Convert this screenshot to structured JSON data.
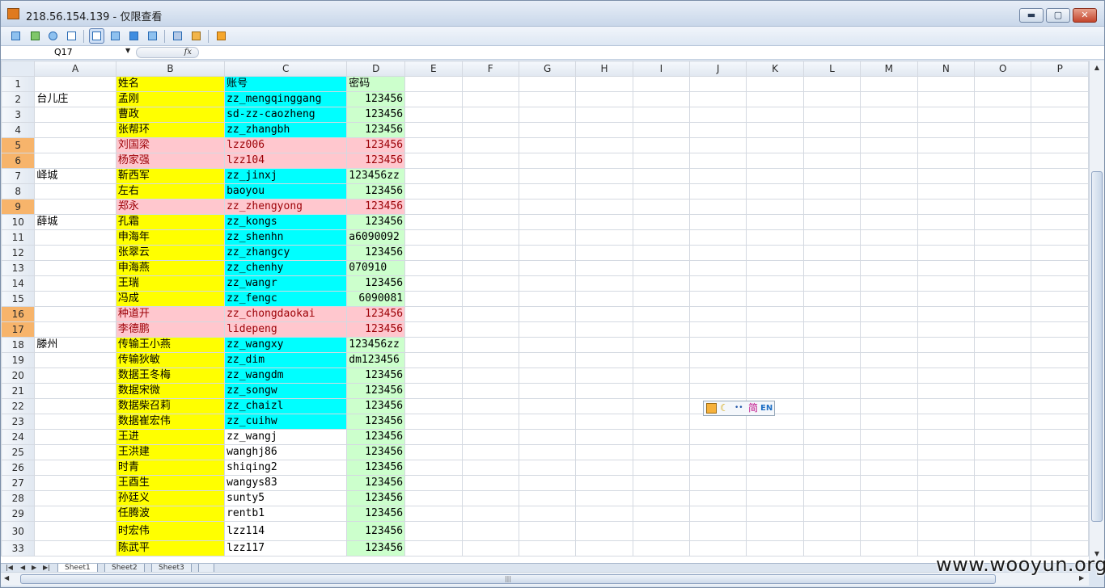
{
  "window": {
    "title": "218.56.154.139 - 仅限查看",
    "min_label": "▬",
    "max_label": "▢",
    "close_label": "✕"
  },
  "toolbar": {
    "icons": [
      "screen-icon",
      "transfer-icon",
      "phone-icon",
      "chat-icon",
      "window-mode-icon",
      "fullscreen-icon",
      "scale-icon",
      "fit-icon",
      "refresh-icon",
      "tools-icon",
      "disconnect-icon"
    ]
  },
  "formula_bar": {
    "cell_ref": "Q17",
    "fx_label": "fx",
    "formula": ""
  },
  "columns": [
    "A",
    "B",
    "C",
    "D",
    "E",
    "F",
    "G",
    "H",
    "I",
    "J",
    "K",
    "L",
    "M",
    "N",
    "O",
    "P"
  ],
  "rows": [
    {
      "n": "1",
      "a": "",
      "b": "姓名",
      "c": "账号",
      "d": "密码",
      "style": "header"
    },
    {
      "n": "2",
      "a": "台儿庄",
      "b": "孟刚",
      "c": "zz_mengqinggang",
      "d": "123456",
      "style": "normal"
    },
    {
      "n": "3",
      "a": "",
      "b": "曹政",
      "c": "sd-zz-caozheng",
      "d": "123456",
      "style": "normal"
    },
    {
      "n": "4",
      "a": "",
      "b": "张帮环",
      "c": "zz_zhangbh",
      "d": "123456",
      "style": "normal"
    },
    {
      "n": "5",
      "a": "",
      "b": "刘国梁",
      "c": "lzz006",
      "d": "123456",
      "style": "pink"
    },
    {
      "n": "6",
      "a": "",
      "b": "杨家强",
      "c": "lzz104",
      "d": "123456",
      "style": "pink"
    },
    {
      "n": "7",
      "a": "峄城",
      "b": "靳西军",
      "c": "zz_jinxj",
      "d": "123456zz",
      "style": "normal",
      "d_left": true
    },
    {
      "n": "8",
      "a": "",
      "b": "左右",
      "c": "baoyou",
      "d": "123456",
      "style": "normal"
    },
    {
      "n": "9",
      "a": "",
      "b": "郑永",
      "c": "zz_zhengyong",
      "d": "123456",
      "style": "pink"
    },
    {
      "n": "10",
      "a": "薛城",
      "b": "孔霜",
      "c": "zz_kongs",
      "d": "123456",
      "style": "normal"
    },
    {
      "n": "11",
      "a": "",
      "b": "申海年",
      "c": "zz_shenhn",
      "d": "a6090092",
      "style": "normal",
      "d_left": true
    },
    {
      "n": "12",
      "a": "",
      "b": "张翠云",
      "c": "zz_zhangcy",
      "d": "123456",
      "style": "normal"
    },
    {
      "n": "13",
      "a": "",
      "b": "申海燕",
      "c": "zz_chenhy",
      "d": "070910",
      "style": "normal",
      "d_left": true
    },
    {
      "n": "14",
      "a": "",
      "b": "王瑞",
      "c": "zz_wangr",
      "d": "123456",
      "style": "normal"
    },
    {
      "n": "15",
      "a": "",
      "b": "冯成",
      "c": "zz_fengc",
      "d": "6090081",
      "style": "normal"
    },
    {
      "n": "16",
      "a": "",
      "b": "种道开",
      "c": "zz_chongdaokai",
      "d": "123456",
      "style": "pink"
    },
    {
      "n": "17",
      "a": "",
      "b": "李德鹏",
      "c": "lidepeng",
      "d": "123456",
      "style": "pink"
    },
    {
      "n": "18",
      "a": "滕州",
      "b": "传输王小燕",
      "c": "zz_wangxy",
      "d": "123456zz",
      "style": "normal",
      "d_left": true
    },
    {
      "n": "19",
      "a": "",
      "b": "传输狄敏",
      "c": "zz_dim",
      "d": "dm123456",
      "style": "normal",
      "d_left": true
    },
    {
      "n": "20",
      "a": "",
      "b": "数据王冬梅",
      "c": "zz_wangdm",
      "d": "123456",
      "style": "normal"
    },
    {
      "n": "21",
      "a": "",
      "b": "数据宋微",
      "c": "zz_songw",
      "d": "123456",
      "style": "normal"
    },
    {
      "n": "22",
      "a": "",
      "b": "数据柴召莉",
      "c": "zz_chaizl",
      "d": "123456",
      "style": "normal"
    },
    {
      "n": "23",
      "a": "",
      "b": "数据崔宏伟",
      "c": "zz_cuihw",
      "d": "123456",
      "style": "normal"
    },
    {
      "n": "24",
      "a": "",
      "b": "王进",
      "c": "zz_wangj",
      "d": "123456",
      "style": "plain"
    },
    {
      "n": "25",
      "a": "",
      "b": "王洪建",
      "c": "wanghj86",
      "d": "123456",
      "style": "plain"
    },
    {
      "n": "26",
      "a": "",
      "b": "时青",
      "c": "shiqing2",
      "d": "123456",
      "style": "plain"
    },
    {
      "n": "27",
      "a": "",
      "b": "王酉生",
      "c": "wangys83",
      "d": "123456",
      "style": "plain"
    },
    {
      "n": "28",
      "a": "",
      "b": "孙廷义",
      "c": "sunty5",
      "d": "123456",
      "style": "plain"
    },
    {
      "n": "29",
      "a": "",
      "b": "任腾波",
      "c": "rentb1",
      "d": "123456",
      "style": "plain"
    },
    {
      "n": "30",
      "a": "",
      "b": "时宏伟",
      "c": "lzz114",
      "d": "123456",
      "style": "plain",
      "tall": true
    },
    {
      "n": "33",
      "a": "",
      "b": "陈武平",
      "c": "lzz117",
      "d": "123456",
      "style": "plain"
    }
  ],
  "selected_rows": [
    "5",
    "6",
    "9",
    "16",
    "17"
  ],
  "sheet_tabs": [
    "Sheet1",
    "Sheet2",
    "Sheet3"
  ],
  "ime": {
    "mode": "简",
    "lang": "EN"
  },
  "watermark": "www.wooyun.org",
  "colors": {
    "yellow": "#ffff00",
    "cyan": "#00ffff",
    "pink": "#ffc7ce",
    "green": "#ccffcc",
    "row_select": "#f7b46b"
  }
}
